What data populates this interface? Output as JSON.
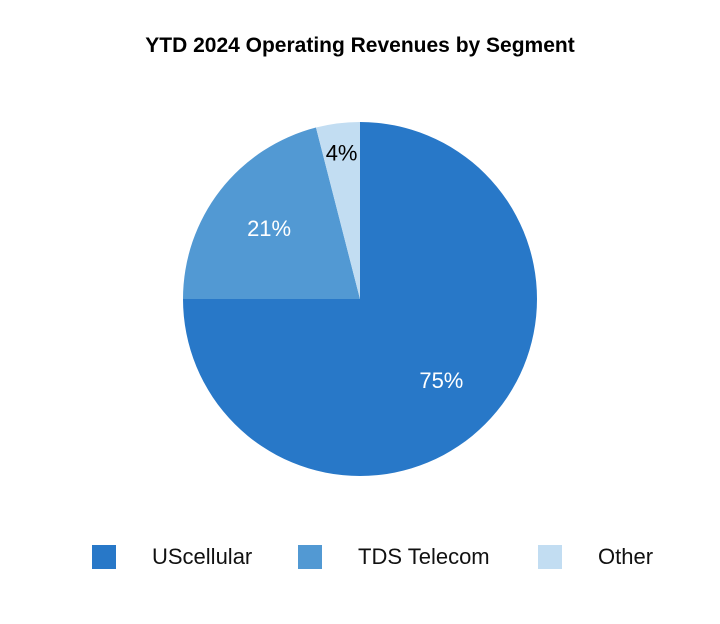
{
  "chart_data": {
    "type": "pie",
    "title": "YTD 2024 Operating Revenues by Segment",
    "categories": [
      "UScellular",
      "TDS Telecom",
      "Other"
    ],
    "values": [
      75,
      21,
      4
    ],
    "labels": [
      "75%",
      "21%",
      "4%"
    ],
    "colors": [
      "#2878c8",
      "#5299d3",
      "#c2ddf2"
    ],
    "label_colors": [
      "#ffffff",
      "#ffffff",
      "#000000"
    ],
    "legend_position": "bottom"
  }
}
